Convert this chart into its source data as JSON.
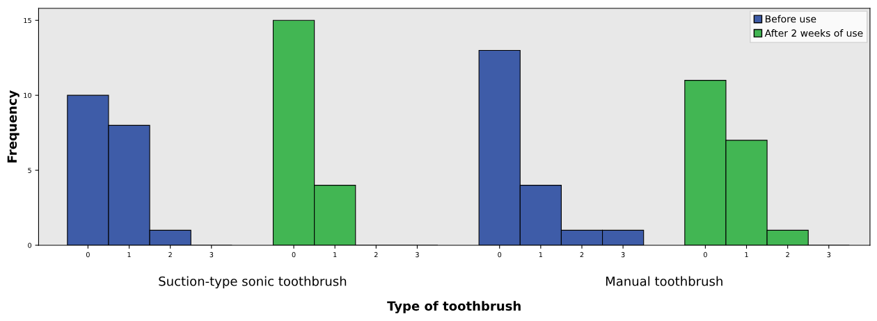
{
  "chart_data": {
    "type": "bar",
    "xlabel": "Type of toothbrush",
    "ylabel": "Frequency",
    "categories": [
      "0",
      "1",
      "2",
      "3",
      null,
      "0",
      "1",
      "2",
      "3",
      null,
      "0",
      "1",
      "2",
      "3",
      null,
      "0",
      "1",
      "2",
      "3"
    ],
    "series": [
      {
        "name": "Before use",
        "color": "#3e5ca8",
        "values": [
          10,
          8,
          1,
          0,
          null,
          null,
          null,
          null,
          null,
          null,
          13,
          4,
          1,
          1,
          null,
          null,
          null,
          null,
          null
        ]
      },
      {
        "name": "After 2 weeks of use",
        "color": "#42b653",
        "values": [
          null,
          null,
          null,
          null,
          null,
          15,
          4,
          0,
          0,
          null,
          null,
          null,
          null,
          null,
          null,
          11,
          7,
          1,
          0
        ]
      }
    ],
    "annotations": [
      "Suction-type sonic toothbrush",
      "Manual toothbrush"
    ],
    "ylim": [
      0,
      15.8
    ],
    "yticks": [
      0,
      5,
      10,
      15
    ],
    "grid": false,
    "legend": "top right"
  }
}
